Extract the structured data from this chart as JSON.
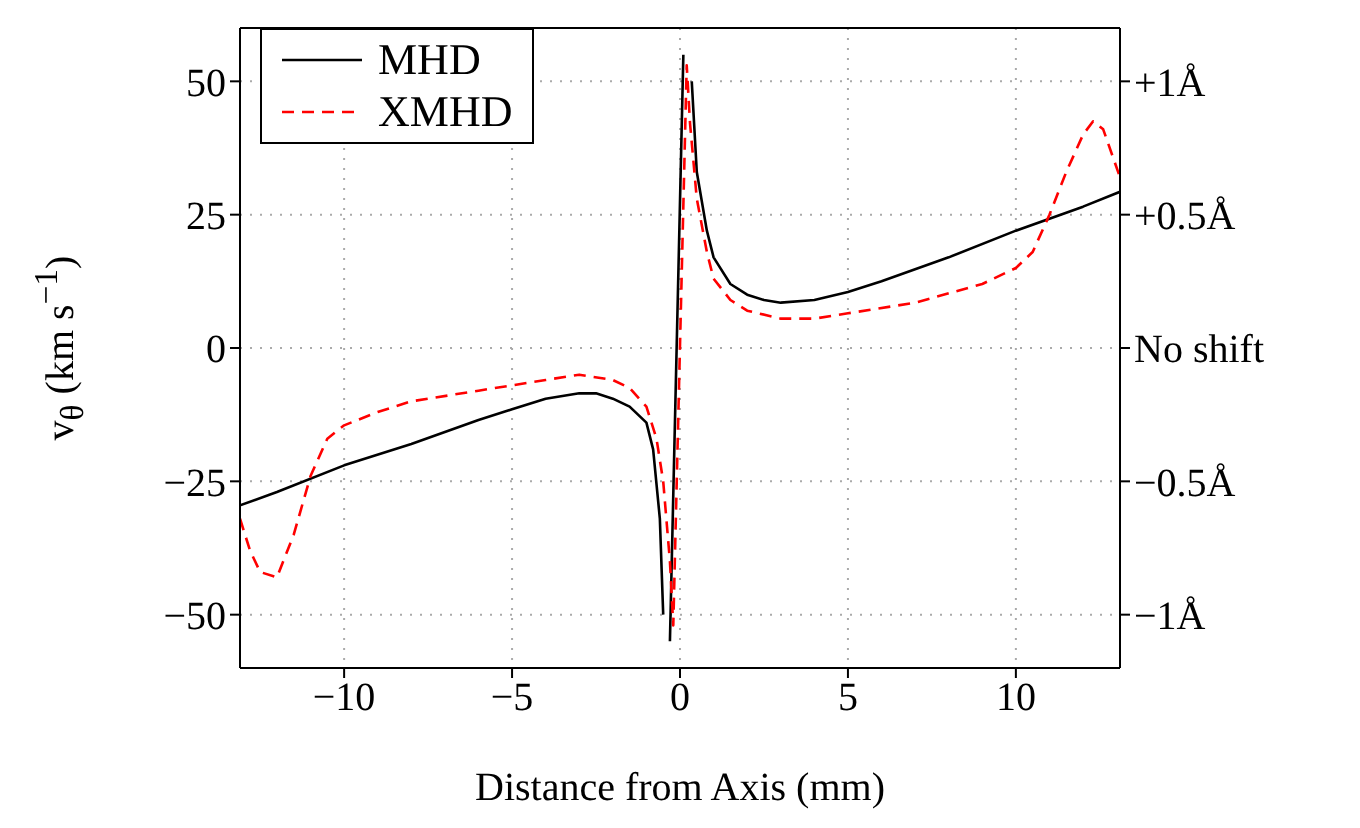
{
  "chart_data": {
    "type": "line",
    "xlabel": "Distance from Axis (mm)",
    "ylabel": "v$_{θ}$ (km s$^{−1}$)",
    "xlim": [
      -13.1,
      13.1
    ],
    "xticks": [
      {
        "value": -10,
        "label": "−10"
      },
      {
        "value": -5,
        "label": "−5"
      },
      0,
      5,
      10
    ],
    "ylim": [
      -60,
      60
    ],
    "yticks": [
      {
        "value": -50,
        "label": "−50"
      },
      {
        "value": -25,
        "label": "−25"
      },
      0,
      25,
      50
    ],
    "y2lim": [
      -1.2,
      1.2
    ],
    "y2ticks": [
      {
        "value": -1,
        "label": "−1Å"
      },
      {
        "value": -0.5,
        "label": "−0.5Å"
      },
      {
        "value": 0,
        "label": "No shift"
      },
      {
        "value": 0.5,
        "label": "+0.5Å"
      },
      {
        "value": 1,
        "label": "+1Å"
      }
    ],
    "grid": true,
    "legend": "top left",
    "marker": "none",
    "series": [
      {
        "name": "MHD",
        "color": "#000000",
        "line_style": "solid",
        "x": [
          -13.1,
          -12,
          -10,
          -8,
          -6,
          -5,
          -4,
          -3,
          -2.5,
          -2,
          -1.5,
          -1,
          -0.8,
          -0.6,
          -0.5,
          -0.45,
          -0.3,
          0.1,
          0.3,
          0.35,
          0.5,
          0.8,
          1,
          1.5,
          2,
          2.5,
          3,
          4,
          5,
          6,
          8,
          10,
          12,
          13.1
        ],
        "values": [
          -29.5,
          -27,
          -22,
          -18,
          -13.5,
          -11.5,
          -9.5,
          -8.5,
          -8.5,
          -9.5,
          -11,
          -14,
          -19,
          -32,
          -50,
          null,
          -55,
          55,
          null,
          50,
          33,
          22,
          17,
          12,
          10,
          9,
          8.5,
          9,
          10.5,
          12.5,
          17,
          22,
          26.5,
          29.3
        ]
      },
      {
        "name": "XMHD",
        "color": "#ff0000",
        "line_style": "dashed",
        "x": [
          -13.1,
          -12.8,
          -12.5,
          -12,
          -11.5,
          -11,
          -10.5,
          -10,
          -9,
          -8,
          -6,
          -5,
          -4,
          -3,
          -2,
          -1.5,
          -1,
          -0.7,
          -0.5,
          -0.3,
          -0.2,
          0.2,
          0.3,
          0.5,
          0.8,
          1,
          1.5,
          2,
          3,
          4,
          5,
          7,
          9,
          10,
          10.5,
          11,
          11.5,
          12,
          12.3,
          12.6,
          13.1
        ],
        "values": [
          -32,
          -38,
          -42,
          -43,
          -35,
          -24,
          -17,
          -14.5,
          -12,
          -10,
          -8,
          -7,
          -6,
          -5,
          -6,
          -7.5,
          -11,
          -17,
          -25,
          -40,
          -52,
          53,
          42,
          28,
          18,
          13,
          9,
          7,
          5.5,
          5.5,
          6.5,
          8.5,
          12,
          15,
          18,
          25,
          33,
          40,
          42.5,
          41,
          32
        ]
      }
    ]
  }
}
